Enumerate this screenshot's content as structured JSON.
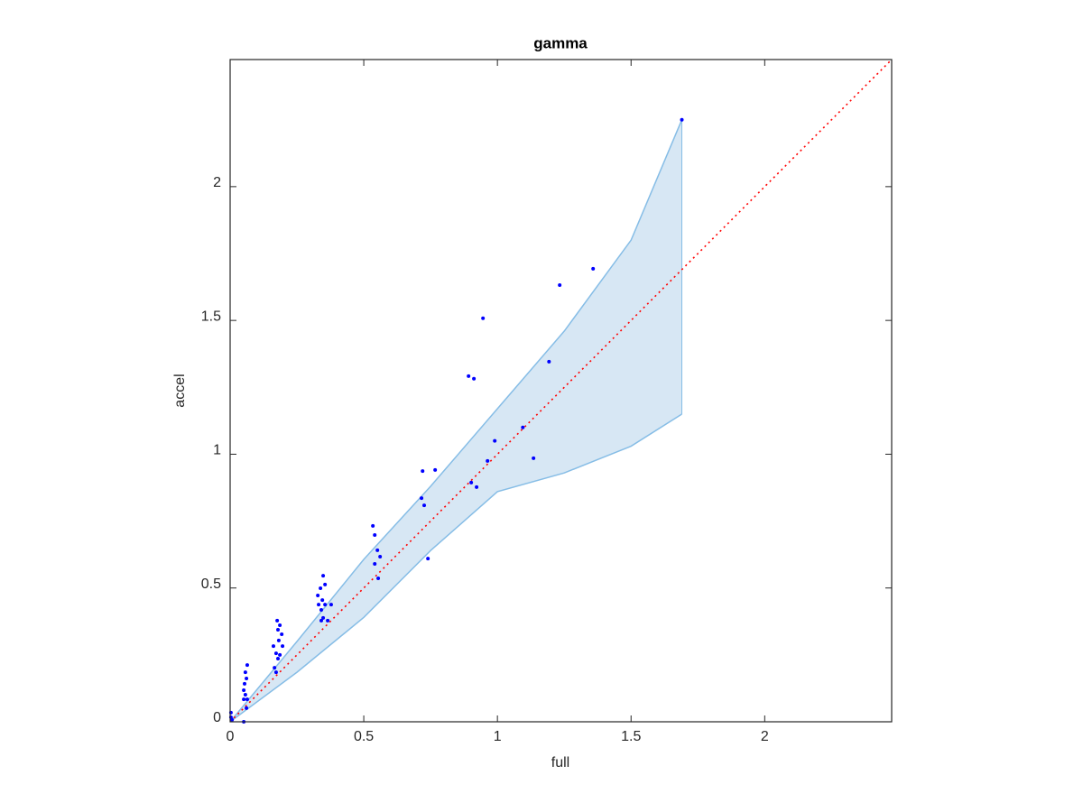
{
  "chart_data": {
    "type": "scatter",
    "title": "gamma",
    "x_label": "full",
    "y_label": "accel",
    "xlim": [
      0,
      2.475
    ],
    "ylim": [
      0,
      2.475
    ],
    "xticks": [
      0,
      0.5,
      1,
      1.5,
      2
    ],
    "yticks": [
      0,
      0.5,
      1,
      1.5,
      2
    ],
    "box": true,
    "band": {
      "x": [
        0,
        0.25,
        0.5,
        0.75,
        1,
        1.25,
        1.5,
        1.69
      ],
      "upper": [
        0,
        0.3,
        0.607,
        0.88,
        1.17,
        1.46,
        1.8,
        2.25
      ],
      "lower": [
        0,
        0.185,
        0.39,
        0.64,
        0.86,
        0.93,
        1.03,
        1.15
      ],
      "fill": "#d7e7f4",
      "edge_color": "#86bde6"
    },
    "reference_line": {
      "x": [
        0,
        2.475
      ],
      "y": [
        0,
        2.475
      ],
      "color": "#ff0000",
      "style": "dotted"
    },
    "points": {
      "color": "#0000ff",
      "x": [
        1.69,
        1.358,
        1.233,
        0.946,
        0.892,
        0.912,
        1.193,
        1.095,
        0.99,
        1.135,
        0.963,
        0.902,
        0.922,
        0.72,
        0.767,
        0.716,
        0.726,
        0.74,
        0.534,
        0.541,
        0.551,
        0.561,
        0.541,
        0.554,
        0.348,
        0.355,
        0.338,
        0.328,
        0.345,
        0.331,
        0.355,
        0.341,
        0.378,
        0.348,
        0.341,
        0.365,
        0.176,
        0.186,
        0.179,
        0.193,
        0.182,
        0.196,
        0.162,
        0.172,
        0.186,
        0.179,
        0.166,
        0.172,
        0.064,
        0.057,
        0.061,
        0.054,
        0.051,
        0.057,
        0.051,
        0.064,
        0.061,
        0.051,
        0.003,
        0.003,
        0.007
      ],
      "y": [
        2.25,
        1.693,
        1.632,
        1.508,
        1.292,
        1.282,
        1.346,
        1.1,
        1.05,
        0.985,
        0.975,
        0.894,
        0.877,
        0.937,
        0.941,
        0.836,
        0.809,
        0.61,
        0.732,
        0.698,
        0.641,
        0.617,
        0.59,
        0.536,
        0.546,
        0.513,
        0.499,
        0.472,
        0.455,
        0.438,
        0.438,
        0.418,
        0.438,
        0.388,
        0.378,
        0.378,
        0.378,
        0.361,
        0.344,
        0.327,
        0.304,
        0.283,
        0.283,
        0.256,
        0.25,
        0.236,
        0.202,
        0.185,
        0.212,
        0.185,
        0.162,
        0.142,
        0.118,
        0.101,
        0.084,
        0.084,
        0.051,
        0,
        0.034,
        0.017,
        0.007
      ]
    }
  }
}
